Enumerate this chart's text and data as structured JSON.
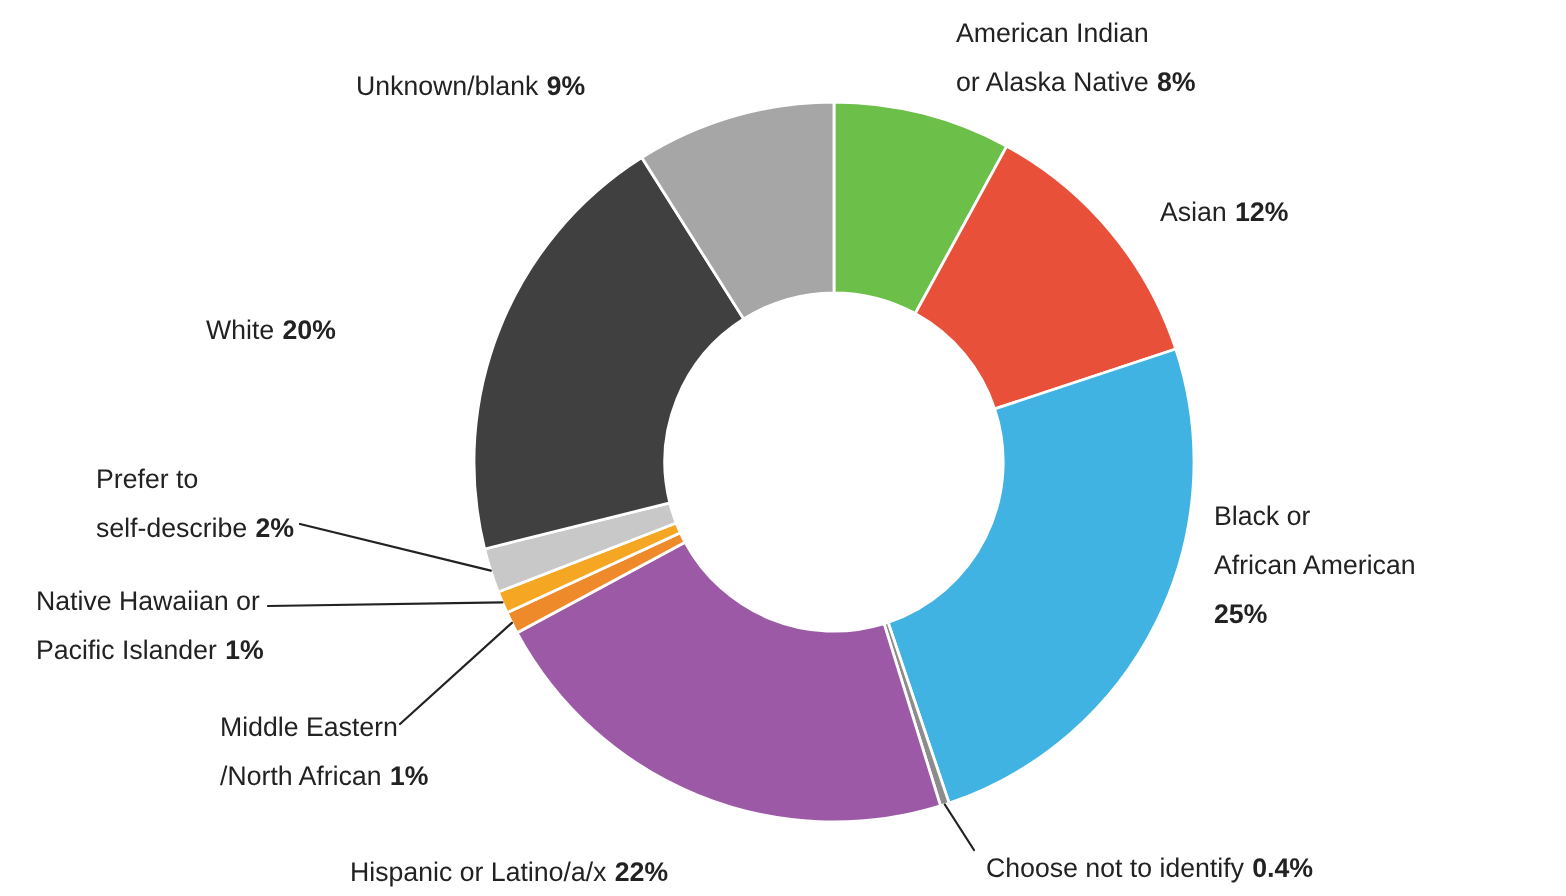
{
  "chart_data": {
    "type": "donut",
    "categories": [
      "American Indian\nor Alaska Native",
      "Asian",
      "Black or\nAfrican American",
      "Choose not to identify",
      "Hispanic or Latino/a/x",
      "Middle Eastern\n/North African",
      "Native Hawaiian or\nPacific Islander",
      "Prefer to\nself-describe",
      "White",
      "Unknown/blank"
    ],
    "values": [
      8,
      12,
      25,
      0.4,
      22,
      1,
      1,
      2,
      20,
      9
    ],
    "value_labels": [
      "8%",
      "12%",
      "25%",
      "0.4%",
      "22%",
      "1%",
      "1%",
      "2%",
      "20%",
      "9%"
    ],
    "colors": [
      "#6cc04a",
      "#e8503a",
      "#41b3e3",
      "#8c8c8c",
      "#9b59a6",
      "#ef8a2b",
      "#f5a623",
      "#c8c8c8",
      "#404040",
      "#a6a6a6"
    ]
  }
}
